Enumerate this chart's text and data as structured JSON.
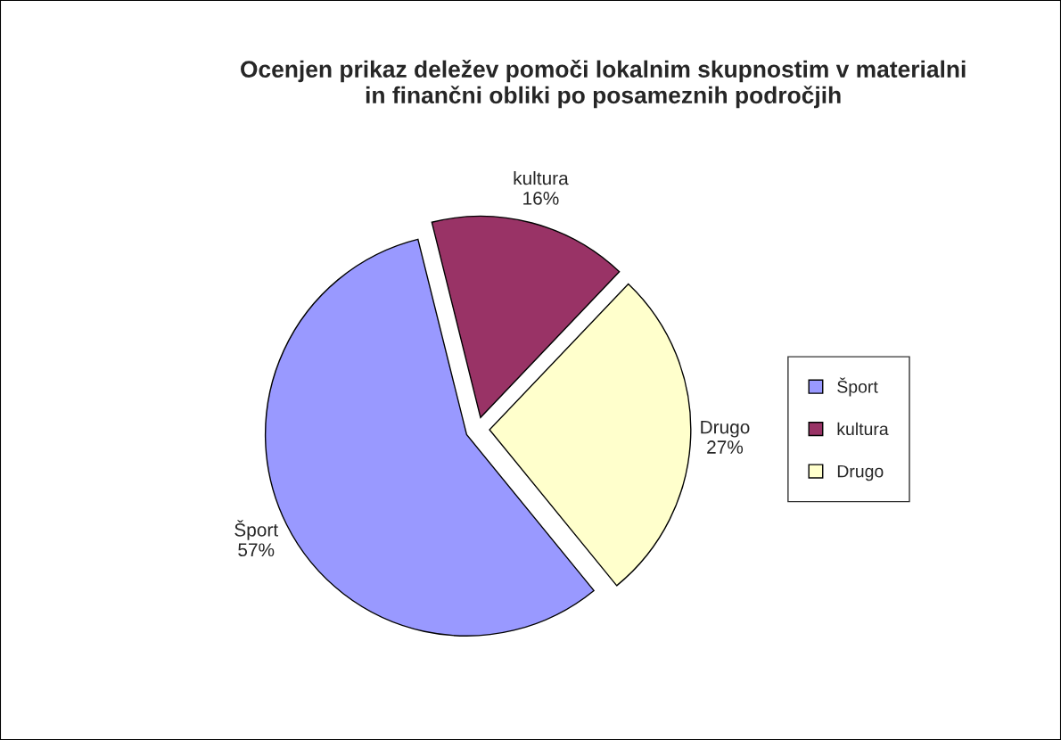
{
  "chart_data": {
    "type": "pie",
    "title": "Ocenjen prikaz deležev pomoči lokalnim skupnostim v materialni\nin finančni obliki po posameznih področjih",
    "categories": [
      "Šport",
      "kultura",
      "Drugo"
    ],
    "values": [
      57,
      16,
      27
    ],
    "colors": [
      "#9999ff",
      "#993366",
      "#ffffcc"
    ],
    "value_labels": [
      "57%",
      "16%",
      "27%"
    ],
    "legend": "right"
  }
}
